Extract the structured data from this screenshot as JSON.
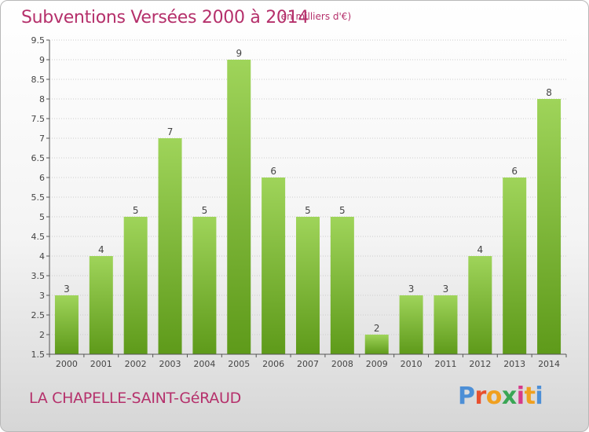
{
  "header": {
    "title": "Subventions Versées 2000 à 2014",
    "unit_note": "(en milliers d'€)"
  },
  "footer": {
    "commune": "LA CHAPELLE-SAINT-GéRAUD",
    "logo_text": "Proxiti",
    "logo_colors": [
      "#4d8fd6",
      "#e8502e",
      "#f0a020",
      "#3aa655",
      "#d63a8a",
      "#f0a020",
      "#4d8fd6"
    ]
  },
  "colors": {
    "title": "#b5306b",
    "bar_light": "#9fd45a",
    "bar_dark": "#5e9a1a",
    "grid": "#cccccc",
    "axis": "#555555"
  },
  "chart_data": {
    "type": "bar",
    "categories": [
      "2000",
      "2001",
      "2002",
      "2003",
      "2004",
      "2005",
      "2006",
      "2007",
      "2008",
      "2009",
      "2010",
      "2011",
      "2012",
      "2013",
      "2014"
    ],
    "values": [
      3,
      4,
      5,
      7,
      5,
      9,
      6,
      5,
      5,
      2,
      3,
      3,
      4,
      6,
      8
    ],
    "ylim": [
      1.5,
      9.5
    ],
    "yticks": [
      "1.5",
      "2",
      "2.5",
      "3",
      "3.5",
      "4",
      "4.5",
      "5",
      "5.5",
      "6",
      "6.5",
      "7",
      "7.5",
      "8",
      "8.5",
      "9",
      "9.5"
    ],
    "grid": true,
    "data_labels": true
  }
}
